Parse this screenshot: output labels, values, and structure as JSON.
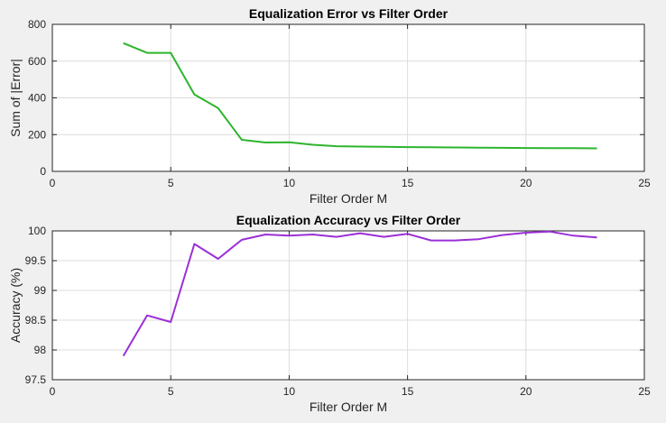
{
  "colors": {
    "background": "#f0f0f0",
    "axes_background": "#ffffff",
    "grid": "#dcdcdc",
    "axis": "#262626",
    "error_series": "#2db52d",
    "accuracy_series": "#9b2fd6"
  },
  "chart_data": [
    {
      "type": "line",
      "title": "Equalization Error vs Filter Order",
      "xlabel": "Filter Order M",
      "ylabel": "Sum of |Error|",
      "xlim": [
        0,
        25
      ],
      "ylim": [
        0,
        800
      ],
      "xticks": [
        0,
        5,
        10,
        15,
        20,
        25
      ],
      "yticks": [
        0,
        200,
        400,
        600,
        800
      ],
      "grid": true,
      "x": [
        3,
        4,
        5,
        6,
        7,
        8,
        9,
        10,
        11,
        12,
        13,
        14,
        15,
        16,
        17,
        18,
        19,
        20,
        21,
        22,
        23
      ],
      "series": [
        {
          "color": "#2db52d",
          "values": [
            698,
            645,
            645,
            418,
            344,
            172,
            157,
            158,
            145,
            137,
            135,
            134,
            132,
            131,
            130,
            129,
            128,
            127,
            126,
            126,
            125
          ]
        }
      ]
    },
    {
      "type": "line",
      "title": "Equalization Accuracy vs Filter Order",
      "xlabel": "Filter Order M",
      "ylabel": "Accuracy (%)",
      "xlim": [
        0,
        25
      ],
      "ylim": [
        97.5,
        100
      ],
      "xticks": [
        0,
        5,
        10,
        15,
        20,
        25
      ],
      "yticks": [
        97.5,
        98,
        98.5,
        99,
        99.5,
        100
      ],
      "grid": true,
      "x": [
        3,
        4,
        5,
        6,
        7,
        8,
        9,
        10,
        11,
        12,
        13,
        14,
        15,
        16,
        17,
        18,
        19,
        20,
        21,
        22,
        23
      ],
      "series": [
        {
          "color": "#9b2fd6",
          "values": [
            97.9,
            98.58,
            98.47,
            99.78,
            99.53,
            99.85,
            99.94,
            99.92,
            99.94,
            99.9,
            99.96,
            99.9,
            99.95,
            99.84,
            99.84,
            99.86,
            99.93,
            99.97,
            99.99,
            99.92,
            99.89
          ]
        }
      ]
    }
  ]
}
